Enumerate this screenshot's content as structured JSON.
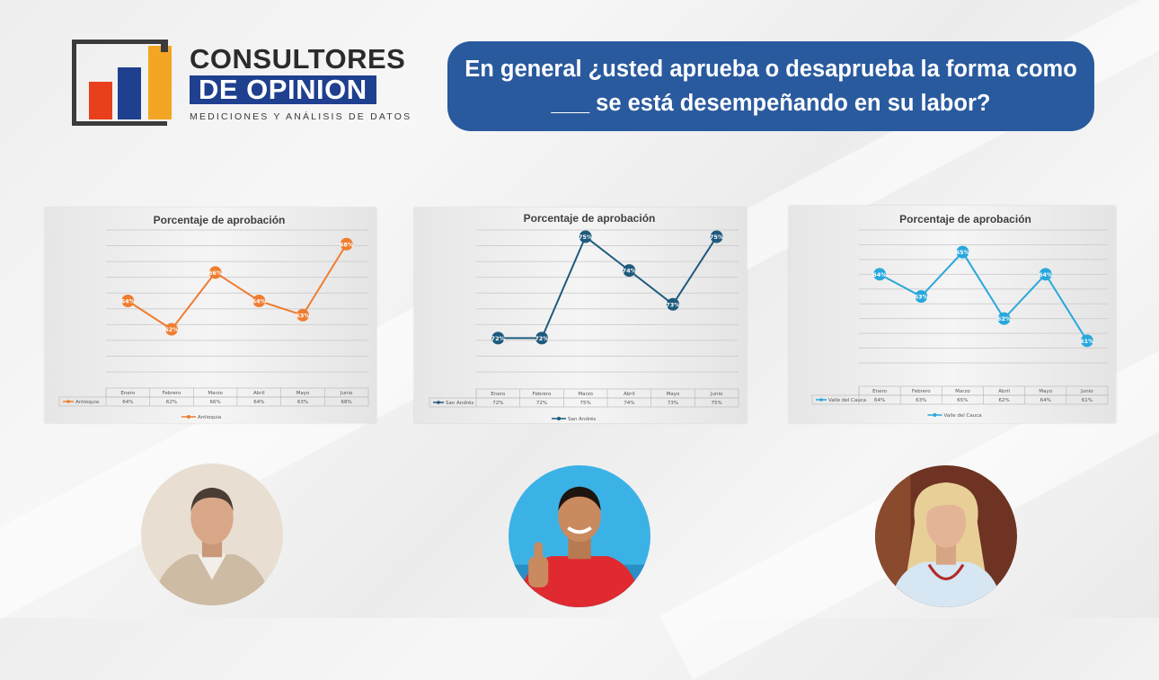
{
  "logo": {
    "line1": "CONSULTORES",
    "line2": "DE OPINION",
    "tagline": "MEDICIONES Y ANÁLISIS DE DATOS"
  },
  "question": "En general ¿usted aprueba o desaprueba la forma como ___ se está desempeñando en su labor?",
  "colors": {
    "antioquia": "#ee7d31",
    "san_andres": "#1f5a7d",
    "valle": "#29a7dc",
    "brand_blue": "#1f3f8f",
    "question_bg": "#2a5a9e"
  },
  "chart_data": [
    {
      "type": "line",
      "title": "Porcentaje de aprobación",
      "categories": [
        "Enero",
        "Febrero",
        "Marzo",
        "Abril",
        "Mayo",
        "Junio"
      ],
      "series": [
        {
          "name": "Antioquia",
          "values": [
            64,
            62,
            66,
            64,
            63,
            68
          ],
          "labels": [
            "64%",
            "62%",
            "66%",
            "64%",
            "63%",
            "68%"
          ]
        }
      ],
      "ylim": [
        59,
        69
      ],
      "grid": true,
      "legend": "bottom",
      "data_table": true
    },
    {
      "type": "line",
      "title": "Porcentaje de aprobación",
      "categories": [
        "Enero",
        "Febrero",
        "Marzo",
        "Abril",
        "Mayo",
        "Junio"
      ],
      "series": [
        {
          "name": "San Andrés",
          "values": [
            72,
            72,
            75,
            74,
            73,
            75
          ],
          "labels": [
            "72%",
            "72%",
            "75%",
            "74%",
            "73%",
            "75%"
          ]
        }
      ],
      "ylim": [
        71,
        75.2
      ],
      "grid": true,
      "legend": "bottom",
      "data_table": true
    },
    {
      "type": "line",
      "title": "Porcentaje de aprobación",
      "categories": [
        "Enero",
        "Febrero",
        "Marzo",
        "Abril",
        "Mayo",
        "Junio"
      ],
      "series": [
        {
          "name": "Valle del Cauca",
          "values": [
            64,
            63,
            65,
            62,
            64,
            61
          ],
          "labels": [
            "64%",
            "63%",
            "65%",
            "62%",
            "64%",
            "61%"
          ]
        }
      ],
      "ylim": [
        60,
        66
      ],
      "grid": true,
      "legend": "bottom",
      "data_table": true
    }
  ],
  "portraits": [
    {
      "subject": "man-in-blazer",
      "colors": {
        "bg": "#e8ded2",
        "skin": "#d9a888",
        "hair": "#4a3d33",
        "clothes": "#cdbba4"
      }
    },
    {
      "subject": "man-thumbs-up",
      "colors": {
        "bg": "#3bb2e6",
        "skin": "#c98a60",
        "hair": "#1e1410",
        "clothes": "#e02a2f"
      }
    },
    {
      "subject": "woman-blonde",
      "colors": {
        "bg": "#6e3322",
        "skin": "#e3b596",
        "hair": "#e8cf97",
        "clothes": "#d6e6f2"
      }
    }
  ]
}
